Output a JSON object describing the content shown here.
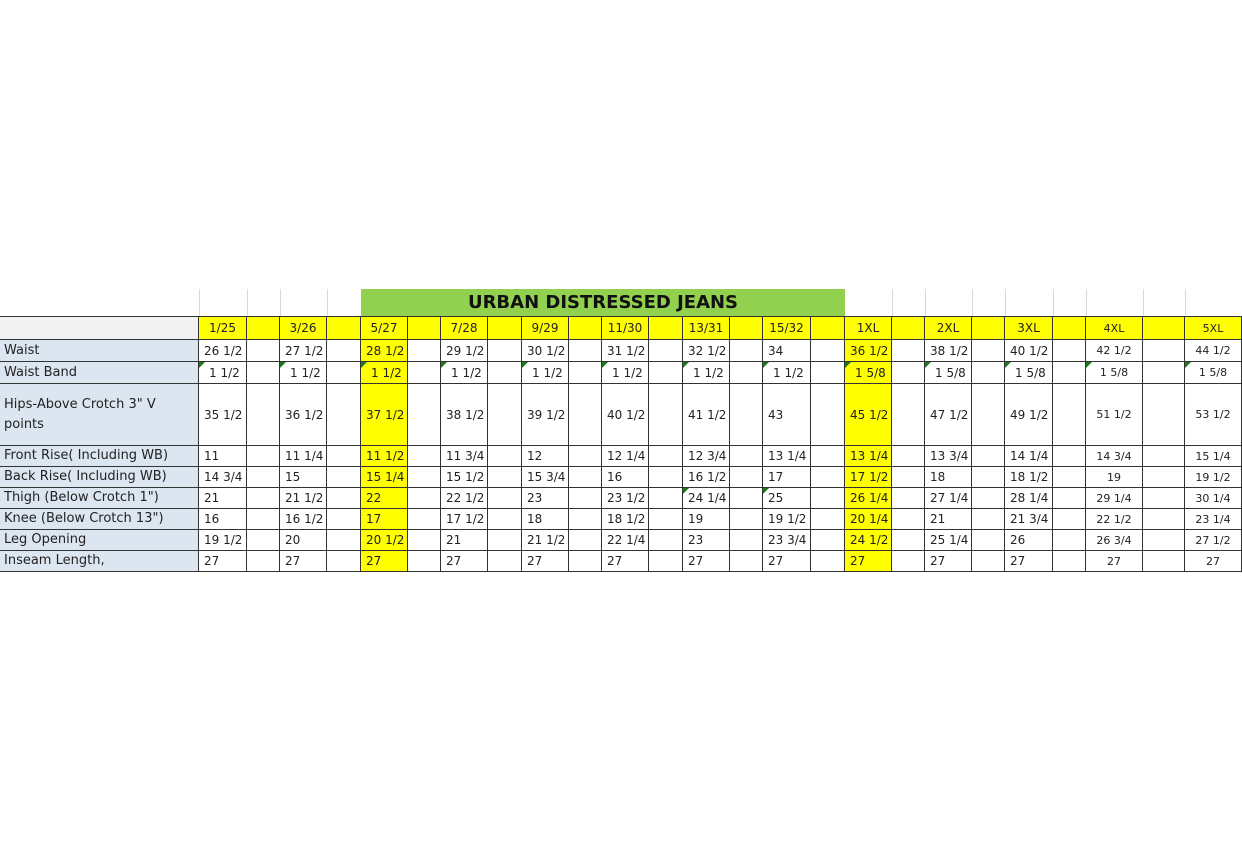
{
  "title": "URBAN DISTRESSED JEANS",
  "colors": {
    "title_bg": "#92d050",
    "highlight": "#ffff00",
    "label_bg": "#dce6f1",
    "note_marker": "#1a7a1a"
  },
  "header_label": "",
  "sizes": [
    "1/25",
    "3/26",
    "5/27",
    "7/28",
    "9/29",
    "11/30",
    "13/31",
    "15/32",
    "1XL",
    "2XL",
    "3XL",
    "4XL",
    "5XL"
  ],
  "highlighted_sizes": [
    "5/27",
    "1XL"
  ],
  "rows": [
    {
      "label": "Waist",
      "values": [
        "26 1/2",
        "27 1/2",
        "28 1/2",
        "29 1/2",
        "30 1/2",
        "31 1/2",
        "32 1/2",
        "34",
        "36 1/2",
        "38 1/2",
        "40 1/2",
        "42 1/2",
        "44 1/2"
      ]
    },
    {
      "label": "Waist Band",
      "values": [
        "1 1/2",
        "1 1/2",
        "1 1/2",
        "1 1/2",
        "1 1/2",
        "1 1/2",
        "1 1/2",
        "1 1/2",
        "1 5/8",
        "1 5/8",
        "1 5/8",
        "1 5/8",
        "1 5/8"
      ]
    },
    {
      "label": "Hips-Above Crotch 3\"  V points",
      "values": [
        "35 1/2",
        "36 1/2",
        "37 1/2",
        "38 1/2",
        "39 1/2",
        "40 1/2",
        "41 1/2",
        "43",
        "45 1/2",
        "47 1/2",
        "49 1/2",
        "51 1/2",
        "53 1/2"
      ]
    },
    {
      "label": "Front Rise( Including WB)",
      "values": [
        "11",
        "11 1/4",
        "11 1/2",
        "11 3/4",
        "12",
        "12 1/4",
        "12 3/4",
        "13 1/4",
        "13 1/4",
        "13 3/4",
        "14 1/4",
        "14 3/4",
        "15 1/4"
      ]
    },
    {
      "label": "Back Rise( Including WB)",
      "values": [
        "14 3/4",
        "15",
        "15 1/4",
        "15 1/2",
        "15 3/4",
        "16",
        "16 1/2",
        "17",
        "17 1/2",
        "18",
        "18 1/2",
        "19",
        "19 1/2"
      ]
    },
    {
      "label": "Thigh (Below Crotch 1\")",
      "values": [
        "21",
        "21 1/2",
        "22",
        "22 1/2",
        "23",
        "23 1/2",
        "24 1/4",
        "25",
        "26 1/4",
        "27 1/4",
        "28 1/4",
        "29 1/4",
        "30 1/4"
      ]
    },
    {
      "label": "Knee (Below Crotch 13\")",
      "values": [
        "16",
        "16 1/2",
        "17",
        "17 1/2",
        "18",
        "18 1/2",
        "19",
        "19 1/2",
        "20 1/4",
        "21",
        "21 3/4",
        "22 1/2",
        "23 1/4"
      ]
    },
    {
      "label": "Leg Opening",
      "values": [
        "19 1/2",
        "20",
        "20 1/2",
        "21",
        "21 1/2",
        "22 1/4",
        "23",
        "23 3/4",
        "24 1/2",
        "25 1/4",
        "26",
        "26 3/4",
        "27 1/2"
      ]
    },
    {
      "label": "Inseam Length,",
      "values": [
        "27",
        "27",
        "27",
        "27",
        "27",
        "27",
        "27",
        "27",
        "27",
        "27",
        "27",
        "27",
        "27"
      ]
    }
  ]
}
